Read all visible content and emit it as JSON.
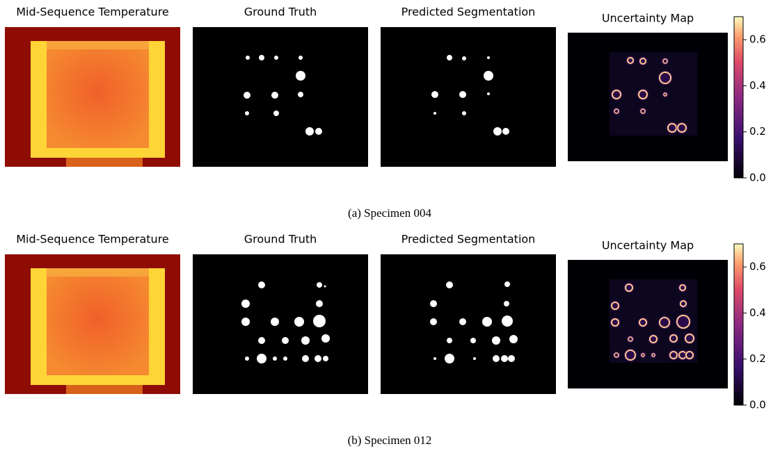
{
  "rows": [
    {
      "panels": [
        "Mid-Sequence Temperature",
        "Ground Truth",
        "Predicted Segmentation",
        "Uncertainty Map"
      ],
      "colorbar": {
        "lim": [
          0,
          0.7
        ],
        "ticks": [
          {
            "value": 0,
            "label": "0.0"
          },
          0.2,
          0.4,
          0.6
        ]
      },
      "caption": "(a) Specimen 004"
    },
    {
      "panels": [
        "Mid-Sequence Temperature",
        "Ground Truth",
        "Predicted Segmentation",
        "Uncertainty Map"
      ],
      "colorbar": {
        "lim": [
          0,
          0.7
        ],
        "ticks": [
          {
            "value": 0,
            "label": "0.0"
          },
          0.2,
          0.4,
          0.6
        ]
      },
      "caption": "(b) Specimen 012"
    }
  ]
}
